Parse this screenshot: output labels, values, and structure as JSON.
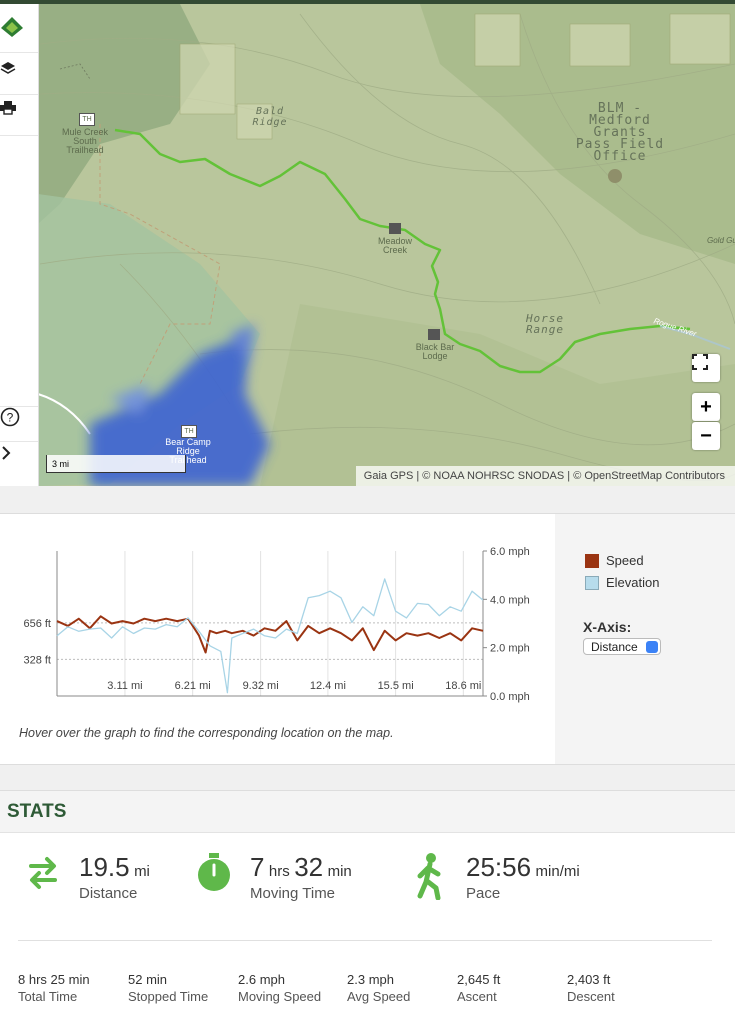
{
  "map": {
    "labels": {
      "mule_creek": "Mule Creek South Trailhead",
      "bald_ridge": "Bald Ridge",
      "blm": "BLM - Medford Grants Pass Field Office",
      "meadow_creek": "Meadow Creek",
      "black_bar": "Black Bar Lodge",
      "horse_range": "Horse Range",
      "bear_camp": "Bear Camp Ridge Trailhead",
      "gold_partial": "Gold Gu",
      "rogue_river": "Rogue River",
      "th": "TH"
    },
    "scale": "3 mi",
    "attribution": "Gaia GPS | © NOAA NOHRSC SNODAS | © OpenStreetMap Contributors",
    "buttons": {
      "zoom_in": "+",
      "zoom_out": "−"
    }
  },
  "chart_data": {
    "type": "line",
    "x_ticks": [
      "3.11 mi",
      "6.21 mi",
      "9.32 mi",
      "12.4 mi",
      "15.5 mi",
      "18.6 mi"
    ],
    "xlim": [
      0,
      19.5
    ],
    "y_left_ticks": [
      "656 ft",
      "328 ft"
    ],
    "y_right_ticks": [
      "6.0 mph",
      "4.0 mph",
      "2.0 mph",
      "0.0 mph"
    ],
    "ylim_left": [
      0,
      1300
    ],
    "ylim_right": [
      0,
      6
    ],
    "grid": true,
    "legend_position": "right",
    "series": [
      {
        "name": "Speed",
        "axis": "right",
        "color": "#9a3412",
        "x": [
          0,
          0.5,
          1,
          1.5,
          2,
          2.5,
          3,
          3.5,
          4,
          4.5,
          5,
          5.5,
          6,
          6.5,
          6.8,
          7,
          7.3,
          7.7,
          8,
          8.5,
          9,
          9.5,
          10,
          10.5,
          11,
          11.5,
          12,
          12.5,
          13,
          13.5,
          14,
          14.5,
          15,
          15.5,
          16,
          16.5,
          17,
          17.5,
          18,
          18.5,
          19,
          19.5
        ],
        "y": [
          3.1,
          2.9,
          3.2,
          2.8,
          3.3,
          3.0,
          3.1,
          3.0,
          3.2,
          3.1,
          3.2,
          3.1,
          3.2,
          2.5,
          1.8,
          2.7,
          2.6,
          2.7,
          2.6,
          2.7,
          2.5,
          2.8,
          2.7,
          3.1,
          2.3,
          2.9,
          2.6,
          2.8,
          2.6,
          2.3,
          2.8,
          1.9,
          2.7,
          2.3,
          2.6,
          2.5,
          2.6,
          2.4,
          2.6,
          2.3,
          2.8,
          2.7
        ]
      },
      {
        "name": "Elevation",
        "axis": "left",
        "color": "#a8d4e6",
        "x": [
          0,
          0.5,
          1,
          1.5,
          2,
          2.5,
          3,
          3.5,
          4,
          4.5,
          5,
          5.5,
          6,
          6.5,
          7,
          7.5,
          7.8,
          8,
          8.5,
          9,
          9.5,
          10,
          10.5,
          11,
          11.5,
          12,
          12.5,
          13,
          13.5,
          14,
          14.5,
          15,
          15.5,
          16,
          16.5,
          17,
          17.5,
          18,
          18.5,
          19,
          19.5
        ],
        "y": [
          540,
          620,
          580,
          600,
          610,
          520,
          620,
          560,
          610,
          600,
          640,
          620,
          700,
          580,
          450,
          400,
          30,
          520,
          560,
          600,
          540,
          520,
          600,
          560,
          880,
          900,
          940,
          880,
          660,
          800,
          720,
          1050,
          760,
          700,
          830,
          820,
          720,
          800,
          760,
          940,
          860
        ]
      }
    ]
  },
  "chart_legend": {
    "speed": "Speed",
    "elevation": "Elevation",
    "xaxis_label": "X-Axis:",
    "xaxis_value": "Distance"
  },
  "hover_note": "Hover over the graph to find the corresponding location on the map.",
  "stats": {
    "title": "STATS",
    "distance": {
      "value": "19.5",
      "unit": "mi",
      "label": "Distance"
    },
    "moving_time": {
      "h": "7",
      "h_unit": "hrs",
      "m": "32",
      "m_unit": "min",
      "label": "Moving Time"
    },
    "pace": {
      "value": "25:56",
      "unit": "min/mi",
      "label": "Pace"
    },
    "total_time": {
      "h": "8",
      "h_unit": "hrs",
      "m": "25",
      "m_unit": "min",
      "label": "Total Time"
    },
    "stopped_time": {
      "value": "52",
      "unit": "min",
      "label": "Stopped Time"
    },
    "moving_speed": {
      "value": "2.6",
      "unit": "mph",
      "label": "Moving Speed"
    },
    "avg_speed": {
      "value": "2.3",
      "unit": "mph",
      "label": "Avg Speed"
    },
    "ascent": {
      "value": "2,645",
      "unit": "ft",
      "label": "Ascent"
    },
    "descent": {
      "value": "2,403",
      "unit": "ft",
      "label": "Descent"
    }
  },
  "colors": {
    "accent": "#5fb84a",
    "route": "#63c238",
    "title": "#2e5a36",
    "snow": "#3c64d2"
  }
}
